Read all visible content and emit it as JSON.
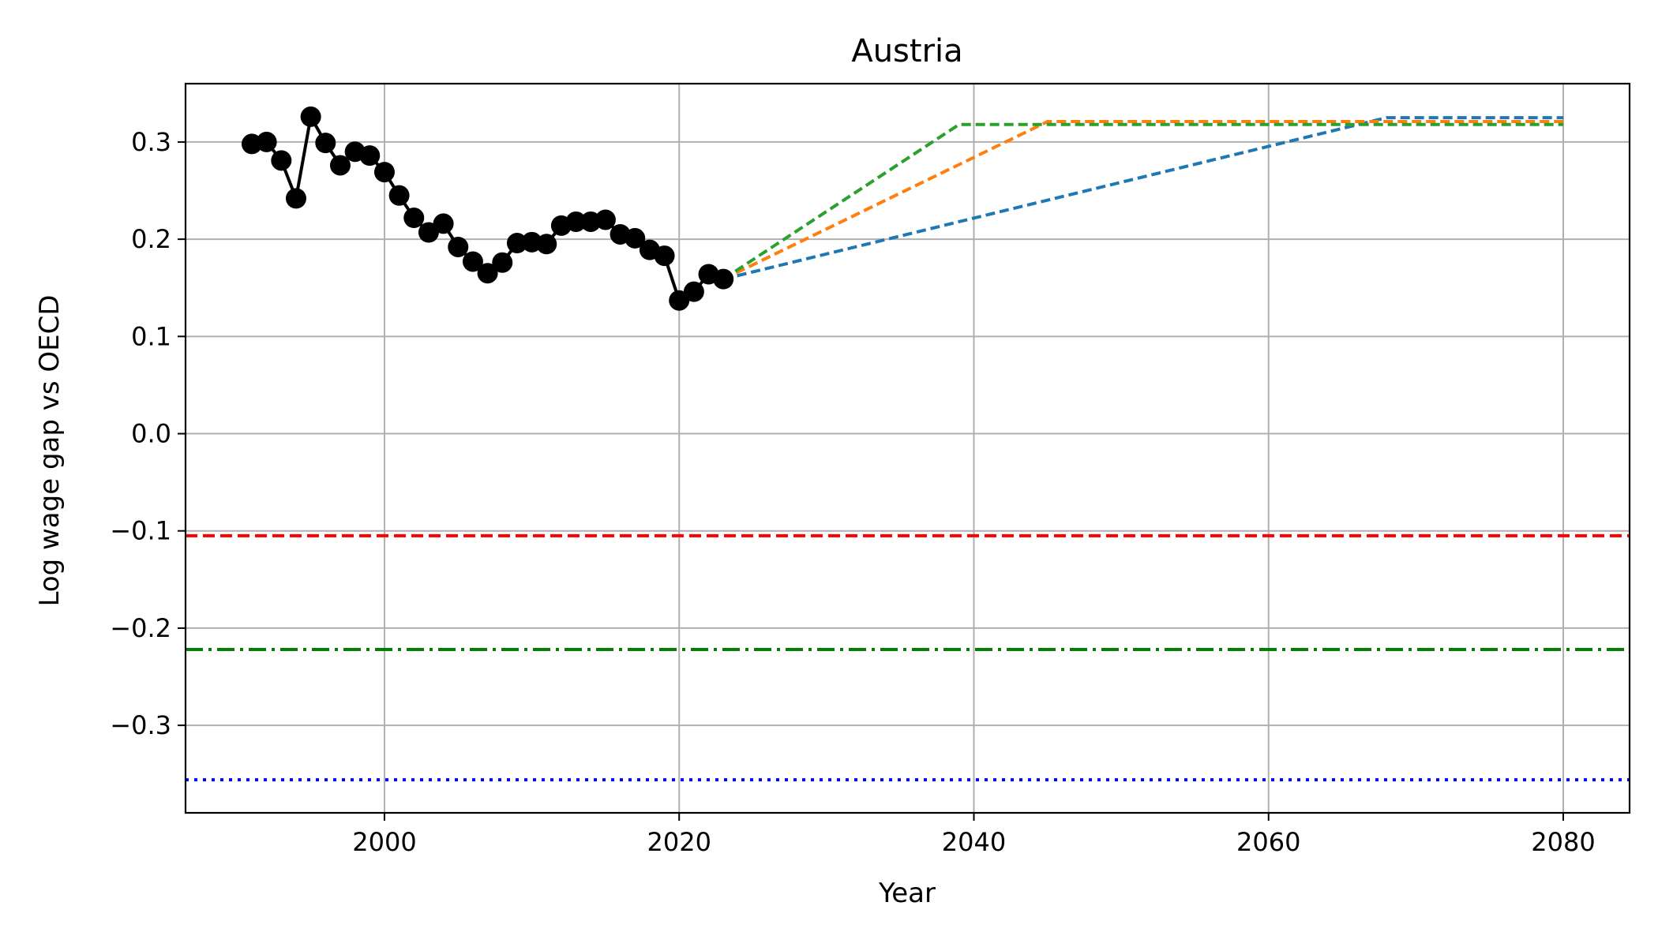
{
  "chart_data": {
    "type": "line",
    "title": "Austria",
    "xlabel": "Year",
    "ylabel": "Log wage gap vs OECD",
    "xlim": [
      1986.5,
      2084.5
    ],
    "ylim": [
      -0.39,
      0.36
    ],
    "grid": true,
    "x_ticks": [
      2000,
      2020,
      2040,
      2060,
      2080
    ],
    "y_ticks": [
      -0.3,
      -0.2,
      -0.1,
      0.0,
      0.1,
      0.2,
      0.3
    ],
    "x_tick_labels": [
      "2000",
      "2020",
      "2040",
      "2060",
      "2080"
    ],
    "y_tick_labels": [
      "−0.3",
      "−0.2",
      "−0.1",
      "0.0",
      "0.1",
      "0.2",
      "0.3"
    ],
    "colors": {
      "history": "#000000",
      "scenario_blue": "#1f77b4",
      "scenario_orange": "#ff7f0e",
      "scenario_green": "#2ca02c",
      "ref_red": "#ff0000",
      "ref_green": "#008000",
      "ref_blue": "#0000ff",
      "grid": "#b0b0b0"
    },
    "history": {
      "x": [
        1991,
        1992,
        1993,
        1994,
        1995,
        1996,
        1997,
        1998,
        1999,
        2000,
        2001,
        2002,
        2003,
        2004,
        2005,
        2006,
        2007,
        2008,
        2009,
        2010,
        2011,
        2012,
        2013,
        2014,
        2015,
        2016,
        2017,
        2018,
        2019,
        2020,
        2021,
        2022,
        2023
      ],
      "y": [
        0.298,
        0.3,
        0.281,
        0.242,
        0.326,
        0.299,
        0.276,
        0.29,
        0.286,
        0.269,
        0.245,
        0.222,
        0.207,
        0.216,
        0.192,
        0.177,
        0.165,
        0.176,
        0.196,
        0.197,
        0.195,
        0.214,
        0.218,
        0.218,
        0.22,
        0.205,
        0.201,
        0.189,
        0.183,
        0.137,
        0.146,
        0.164,
        0.159
      ]
    },
    "series": [
      {
        "color": "scenario_blue",
        "x": [
          2023,
          2068,
          2080
        ],
        "y": [
          0.159,
          0.325,
          0.325
        ]
      },
      {
        "color": "scenario_orange",
        "x": [
          2023,
          2045,
          2080
        ],
        "y": [
          0.159,
          0.321,
          0.321
        ]
      },
      {
        "color": "scenario_green",
        "x": [
          2023,
          2039,
          2080
        ],
        "y": [
          0.159,
          0.318,
          0.318
        ]
      }
    ],
    "reference_lines": [
      {
        "color": "ref_red",
        "style": "dashed",
        "y": -0.105
      },
      {
        "color": "ref_green",
        "style": "dashdot",
        "y": -0.222
      },
      {
        "color": "ref_blue",
        "style": "dotted",
        "y": -0.356
      }
    ]
  }
}
